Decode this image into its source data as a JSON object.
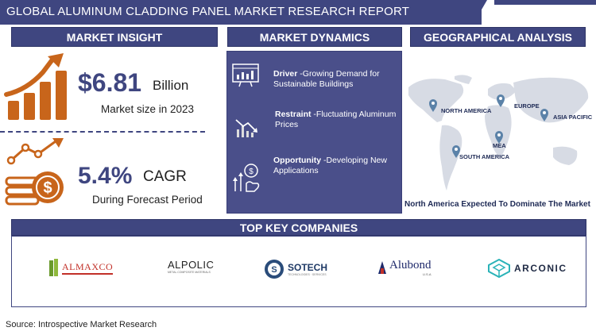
{
  "title": "GLOBAL ALUMINUM CLADDING PANEL  MARKET RESEARCH  REPORT",
  "sections": {
    "market_insight": "MARKET INSIGHT",
    "market_dynamics": "MARKET DYNAMICS",
    "geographical_analysis": "GEOGRAPHICAL ANALYSIS",
    "top_key_companies": "TOP KEY COMPANIES"
  },
  "market_size": {
    "value": "$6.81",
    "unit": "Billion",
    "caption": "Market size in 2023"
  },
  "cagr": {
    "value": "5.4%",
    "unit": "CAGR",
    "caption": "During Forecast Period"
  },
  "dynamics": [
    {
      "label": "Driver",
      "text": " -Growing Demand for Sustainable Buildings",
      "icon": "chart-screen-icon"
    },
    {
      "label": "Restraint",
      "text": " -Fluctuating Aluminum Prices",
      "icon": "declining-chart-icon"
    },
    {
      "label": "Opportunity",
      "text": " -Developing New Applications",
      "icon": "growth-hand-icon"
    }
  ],
  "regions": [
    "NORTH AMERICA",
    "EUROPE",
    "ASIA PACIFIC",
    "MEA",
    "SOUTH AMERICA"
  ],
  "geo_caption": "North America Expected To Dominate The Market",
  "companies": [
    {
      "name": "ALMAXCO"
    },
    {
      "name": "ALPOLIC",
      "tagline": "METAL COMPOSITE MATERIALS"
    },
    {
      "name": "SOTECH",
      "tagline": "TECHNOLOGIES · SERVICES"
    },
    {
      "name": "Alubond",
      "tagline": "U.S.A"
    },
    {
      "name": "ARCONIC"
    }
  ],
  "source": "Source: Introspective Market Research",
  "colors": {
    "navy": "#3f4680",
    "orange": "#c8651b",
    "panel": "#4a4f8a"
  }
}
